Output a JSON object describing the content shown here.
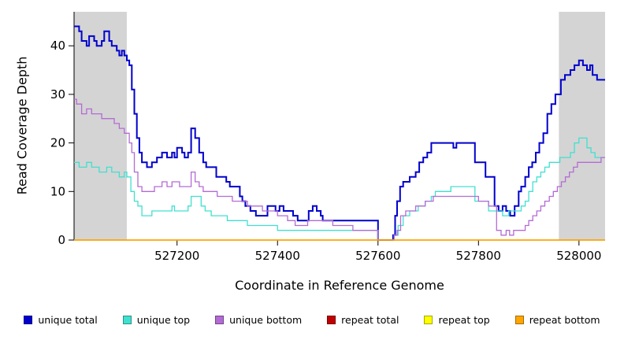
{
  "chart_data": {
    "type": "line",
    "step": true,
    "title": "",
    "xlabel": "Coordinate in Reference Genome",
    "ylabel": "Read Coverage Depth",
    "xlim": [
      526995,
      528052
    ],
    "ylim": [
      0,
      47
    ],
    "xticks": [
      527200,
      527400,
      527600,
      527800,
      528000
    ],
    "yticks": [
      0,
      10,
      20,
      30,
      40
    ],
    "grid": false,
    "legend_position": "bottom",
    "background": "#ffffff",
    "shaded_regions": [
      {
        "x0": 526995,
        "x1": 527100,
        "color": "#d4d4d4"
      },
      {
        "x0": 527960,
        "x1": 528052,
        "color": "#d4d4d4"
      }
    ],
    "series": [
      {
        "name": "unique total",
        "color": "#0000CD",
        "width": 2,
        "points": [
          [
            526995,
            44
          ],
          [
            527005,
            43
          ],
          [
            527010,
            41
          ],
          [
            527020,
            40
          ],
          [
            527025,
            42
          ],
          [
            527035,
            41
          ],
          [
            527040,
            40
          ],
          [
            527050,
            41
          ],
          [
            527055,
            43
          ],
          [
            527065,
            41
          ],
          [
            527070,
            40
          ],
          [
            527080,
            39
          ],
          [
            527085,
            38
          ],
          [
            527090,
            39
          ],
          [
            527095,
            38
          ],
          [
            527100,
            37
          ],
          [
            527105,
            36
          ],
          [
            527110,
            31
          ],
          [
            527115,
            26
          ],
          [
            527120,
            21
          ],
          [
            527125,
            18
          ],
          [
            527130,
            16
          ],
          [
            527140,
            15
          ],
          [
            527150,
            16
          ],
          [
            527160,
            17
          ],
          [
            527170,
            18
          ],
          [
            527180,
            17
          ],
          [
            527190,
            18
          ],
          [
            527195,
            17
          ],
          [
            527200,
            19
          ],
          [
            527210,
            18
          ],
          [
            527215,
            17
          ],
          [
            527222,
            18
          ],
          [
            527228,
            23
          ],
          [
            527236,
            21
          ],
          [
            527244,
            18
          ],
          [
            527252,
            16
          ],
          [
            527258,
            15
          ],
          [
            527270,
            15
          ],
          [
            527278,
            13
          ],
          [
            527290,
            13
          ],
          [
            527298,
            12
          ],
          [
            527305,
            11
          ],
          [
            527318,
            11
          ],
          [
            527325,
            9
          ],
          [
            527330,
            8
          ],
          [
            527336,
            7
          ],
          [
            527346,
            6
          ],
          [
            527357,
            5
          ],
          [
            527372,
            5
          ],
          [
            527380,
            7
          ],
          [
            527388,
            7
          ],
          [
            527396,
            6
          ],
          [
            527404,
            7
          ],
          [
            527412,
            6
          ],
          [
            527427,
            6
          ],
          [
            527431,
            5
          ],
          [
            527440,
            4
          ],
          [
            527459,
            4
          ],
          [
            527462,
            6
          ],
          [
            527470,
            7
          ],
          [
            527478,
            6
          ],
          [
            527486,
            5
          ],
          [
            527490,
            4
          ],
          [
            527595,
            4
          ],
          [
            527600,
            0
          ],
          [
            527628,
            0
          ],
          [
            527630,
            1
          ],
          [
            527634,
            5
          ],
          [
            527638,
            8
          ],
          [
            527644,
            11
          ],
          [
            527650,
            12
          ],
          [
            527663,
            13
          ],
          [
            527675,
            14
          ],
          [
            527682,
            16
          ],
          [
            527690,
            17
          ],
          [
            527698,
            18
          ],
          [
            527706,
            20
          ],
          [
            527745,
            20
          ],
          [
            527750,
            19
          ],
          [
            527756,
            20
          ],
          [
            527788,
            20
          ],
          [
            527793,
            16
          ],
          [
            527810,
            16
          ],
          [
            527814,
            13
          ],
          [
            527828,
            13
          ],
          [
            527832,
            7
          ],
          [
            527840,
            6
          ],
          [
            527848,
            7
          ],
          [
            527855,
            6
          ],
          [
            527863,
            5
          ],
          [
            527872,
            7
          ],
          [
            527880,
            10
          ],
          [
            527885,
            11
          ],
          [
            527893,
            13
          ],
          [
            527900,
            15
          ],
          [
            527907,
            16
          ],
          [
            527914,
            18
          ],
          [
            527921,
            20
          ],
          [
            527929,
            22
          ],
          [
            527937,
            26
          ],
          [
            527945,
            28
          ],
          [
            527953,
            30
          ],
          [
            527964,
            33
          ],
          [
            527972,
            34
          ],
          [
            527983,
            35
          ],
          [
            527991,
            36
          ],
          [
            528000,
            37
          ],
          [
            528008,
            36
          ],
          [
            528016,
            35
          ],
          [
            528022,
            36
          ],
          [
            528027,
            34
          ],
          [
            528036,
            33
          ],
          [
            528052,
            33
          ]
        ]
      },
      {
        "name": "unique top",
        "color": "#40E0D0",
        "width": 1.3,
        "points": [
          [
            526995,
            16
          ],
          [
            527005,
            15
          ],
          [
            527020,
            16
          ],
          [
            527030,
            15
          ],
          [
            527045,
            14
          ],
          [
            527060,
            15
          ],
          [
            527070,
            14
          ],
          [
            527085,
            13
          ],
          [
            527095,
            14
          ],
          [
            527100,
            13
          ],
          [
            527108,
            10
          ],
          [
            527115,
            8
          ],
          [
            527122,
            7
          ],
          [
            527130,
            5
          ],
          [
            527140,
            5
          ],
          [
            527150,
            6
          ],
          [
            527180,
            6
          ],
          [
            527190,
            7
          ],
          [
            527195,
            6
          ],
          [
            527210,
            6
          ],
          [
            527222,
            7
          ],
          [
            527228,
            9
          ],
          [
            527240,
            9
          ],
          [
            527248,
            7
          ],
          [
            527256,
            6
          ],
          [
            527268,
            5
          ],
          [
            527290,
            5
          ],
          [
            527300,
            4
          ],
          [
            527330,
            4
          ],
          [
            527340,
            3
          ],
          [
            527380,
            3
          ],
          [
            527400,
            2
          ],
          [
            527595,
            2
          ],
          [
            527600,
            0
          ],
          [
            527628,
            0
          ],
          [
            527632,
            1
          ],
          [
            527640,
            3
          ],
          [
            527650,
            5
          ],
          [
            527663,
            6
          ],
          [
            527680,
            7
          ],
          [
            527694,
            8
          ],
          [
            527706,
            9
          ],
          [
            527714,
            10
          ],
          [
            527738,
            10
          ],
          [
            527745,
            11
          ],
          [
            527785,
            11
          ],
          [
            527793,
            8
          ],
          [
            527812,
            8
          ],
          [
            527820,
            6
          ],
          [
            527840,
            6
          ],
          [
            527848,
            5
          ],
          [
            527860,
            6
          ],
          [
            527880,
            6
          ],
          [
            527885,
            7
          ],
          [
            527893,
            8
          ],
          [
            527900,
            10
          ],
          [
            527908,
            12
          ],
          [
            527916,
            13
          ],
          [
            527924,
            14
          ],
          [
            527932,
            15
          ],
          [
            527941,
            16
          ],
          [
            527955,
            16
          ],
          [
            527962,
            17
          ],
          [
            527975,
            17
          ],
          [
            527983,
            18
          ],
          [
            527991,
            20
          ],
          [
            528000,
            21
          ],
          [
            528011,
            21
          ],
          [
            528016,
            19
          ],
          [
            528024,
            18
          ],
          [
            528032,
            17
          ],
          [
            528052,
            17
          ]
        ]
      },
      {
        "name": "unique bottom",
        "color": "#B36BD4",
        "width": 1.3,
        "points": [
          [
            526995,
            29
          ],
          [
            527000,
            28
          ],
          [
            527010,
            26
          ],
          [
            527020,
            27
          ],
          [
            527030,
            26
          ],
          [
            527045,
            26
          ],
          [
            527050,
            25
          ],
          [
            527065,
            25
          ],
          [
            527075,
            24
          ],
          [
            527085,
            23
          ],
          [
            527095,
            22
          ],
          [
            527105,
            20
          ],
          [
            527110,
            18
          ],
          [
            527115,
            14
          ],
          [
            527122,
            11
          ],
          [
            527130,
            10
          ],
          [
            527145,
            10
          ],
          [
            527155,
            11
          ],
          [
            527170,
            12
          ],
          [
            527180,
            11
          ],
          [
            527190,
            12
          ],
          [
            527205,
            11
          ],
          [
            527220,
            11
          ],
          [
            527228,
            14
          ],
          [
            527236,
            12
          ],
          [
            527244,
            11
          ],
          [
            527252,
            10
          ],
          [
            527270,
            10
          ],
          [
            527280,
            9
          ],
          [
            527300,
            9
          ],
          [
            527310,
            8
          ],
          [
            527330,
            8
          ],
          [
            527340,
            7
          ],
          [
            527360,
            7
          ],
          [
            527370,
            6
          ],
          [
            527390,
            6
          ],
          [
            527400,
            5
          ],
          [
            527420,
            4
          ],
          [
            527435,
            3
          ],
          [
            527450,
            3
          ],
          [
            527460,
            4
          ],
          [
            527500,
            4
          ],
          [
            527510,
            3
          ],
          [
            527540,
            3
          ],
          [
            527550,
            2
          ],
          [
            527595,
            2
          ],
          [
            527600,
            0
          ],
          [
            527628,
            0
          ],
          [
            527632,
            1
          ],
          [
            527638,
            2
          ],
          [
            527645,
            5
          ],
          [
            527655,
            6
          ],
          [
            527675,
            7
          ],
          [
            527694,
            8
          ],
          [
            527710,
            9
          ],
          [
            527790,
            9
          ],
          [
            527800,
            8
          ],
          [
            527815,
            8
          ],
          [
            527820,
            7
          ],
          [
            527832,
            7
          ],
          [
            527836,
            2
          ],
          [
            527845,
            1
          ],
          [
            527855,
            2
          ],
          [
            527862,
            1
          ],
          [
            527870,
            2
          ],
          [
            527885,
            2
          ],
          [
            527893,
            3
          ],
          [
            527900,
            4
          ],
          [
            527908,
            5
          ],
          [
            527916,
            6
          ],
          [
            527924,
            7
          ],
          [
            527932,
            8
          ],
          [
            527941,
            9
          ],
          [
            527949,
            10
          ],
          [
            527957,
            11
          ],
          [
            527965,
            12
          ],
          [
            527973,
            13
          ],
          [
            527981,
            14
          ],
          [
            527989,
            15
          ],
          [
            527997,
            16
          ],
          [
            528040,
            16
          ],
          [
            528044,
            17
          ],
          [
            528052,
            17
          ]
        ]
      },
      {
        "name": "repeat total",
        "color": "#C00000",
        "width": 1.2,
        "points": [
          [
            526995,
            0
          ],
          [
            528052,
            0
          ]
        ]
      },
      {
        "name": "repeat top",
        "color": "#FFFF00",
        "width": 1.2,
        "points": [
          [
            526995,
            0
          ],
          [
            528052,
            0
          ]
        ]
      },
      {
        "name": "repeat bottom",
        "color": "#FFA500",
        "width": 1.5,
        "points": [
          [
            526995,
            0
          ],
          [
            528052,
            0
          ]
        ]
      }
    ]
  }
}
